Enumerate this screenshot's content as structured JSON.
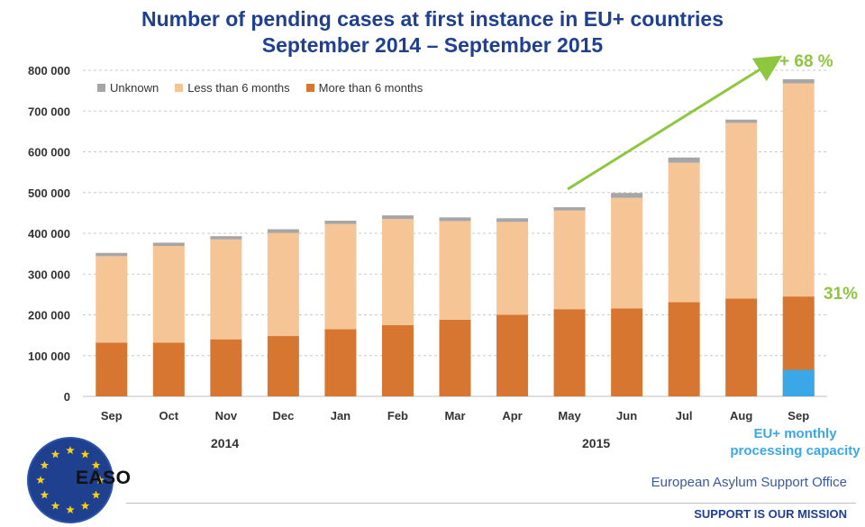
{
  "chart_data": {
    "type": "bar",
    "stacked": true,
    "title": [
      "Number of pending cases at first instance in EU+ countries",
      "September 2014 – September 2015"
    ],
    "categories": [
      "Sep",
      "Oct",
      "Nov",
      "Dec",
      "Jan",
      "Feb",
      "Mar",
      "Apr",
      "May",
      "Jun",
      "Jul",
      "Aug",
      "Sep"
    ],
    "year_labels": [
      "2014",
      "2015"
    ],
    "y_ticks": [
      "0",
      "100 000",
      "200 000",
      "300 000",
      "400 000",
      "500 000",
      "600 000",
      "700 000",
      "800 000"
    ],
    "ylim": [
      0,
      800000
    ],
    "grid": true,
    "legend_position": "top-left",
    "series": [
      {
        "name": "More than 6 months",
        "color": "#d77630",
        "values": [
          132000,
          132000,
          140000,
          148000,
          165000,
          175000,
          188000,
          200000,
          214000,
          216000,
          231000,
          240000,
          245000
        ]
      },
      {
        "name": "Less than 6 months",
        "color": "#f5c596",
        "values": [
          212000,
          237000,
          245000,
          253000,
          258000,
          260000,
          242000,
          228000,
          242000,
          271000,
          342000,
          431000,
          523000
        ]
      },
      {
        "name": "Unknown",
        "color": "#a6a6a6",
        "values": [
          8000,
          8000,
          8000,
          9000,
          8000,
          9000,
          9000,
          9000,
          8000,
          12000,
          13000,
          8000,
          10000
        ]
      }
    ],
    "highlight": {
      "label": "EU+ monthly processing capacity",
      "category_index": 12,
      "value": 65000,
      "color": "#3aa8e6"
    },
    "annotations": [
      {
        "text": "+ 68 %",
        "type": "growth-arrow",
        "from_index": 8,
        "to_index": 12,
        "color": "#8dc63f"
      },
      {
        "text": "31%",
        "type": "share-label",
        "color": "#8dc63f"
      }
    ]
  },
  "legend": {
    "unknown": "Unknown",
    "less": "Less than 6 months",
    "more": "More than 6 months"
  },
  "footer": {
    "logo": "EASO",
    "org": "European Asylum Support Office",
    "mission": "SUPPORT IS OUR MISSION"
  }
}
